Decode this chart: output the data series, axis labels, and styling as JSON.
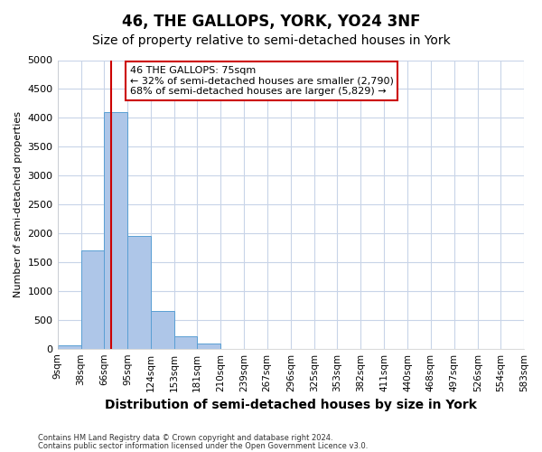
{
  "title": "46, THE GALLOPS, YORK, YO24 3NF",
  "subtitle": "Size of property relative to semi-detached houses in York",
  "xlabel": "Distribution of semi-detached houses by size in York",
  "ylabel": "Number of semi-detached properties",
  "footnote1": "Contains HM Land Registry data © Crown copyright and database right 2024.",
  "footnote2": "Contains public sector information licensed under the Open Government Licence v3.0.",
  "bar_edges": [
    9,
    38,
    66,
    95,
    124,
    153,
    181,
    210,
    239,
    267,
    296,
    325,
    353,
    382,
    411,
    440,
    468,
    497,
    526,
    554,
    583
  ],
  "bar_heights": [
    50,
    1700,
    4100,
    1950,
    650,
    220,
    85,
    0,
    0,
    0,
    0,
    0,
    0,
    0,
    0,
    0,
    0,
    0,
    0,
    0
  ],
  "bar_color": "#aec6e8",
  "bar_edgecolor": "#5a9fd4",
  "property_size": 75,
  "property_line_color": "#cc0000",
  "annotation_line1": "46 THE GALLOPS: 75sqm",
  "annotation_line2": "← 32% of semi-detached houses are smaller (2,790)",
  "annotation_line3": "68% of semi-detached houses are larger (5,829) →",
  "annotation_box_color": "#ffffff",
  "annotation_box_edgecolor": "#cc0000",
  "ylim": [
    0,
    5000
  ],
  "yticks": [
    0,
    500,
    1000,
    1500,
    2000,
    2500,
    3000,
    3500,
    4000,
    4500,
    5000
  ],
  "tick_labels": [
    "9sqm",
    "38sqm",
    "66sqm",
    "95sqm",
    "124sqm",
    "153sqm",
    "181sqm",
    "210sqm",
    "239sqm",
    "267sqm",
    "296sqm",
    "325sqm",
    "353sqm",
    "382sqm",
    "411sqm",
    "440sqm",
    "468sqm",
    "497sqm",
    "526sqm",
    "554sqm",
    "583sqm"
  ],
  "background_color": "#ffffff",
  "grid_color": "#c8d4e8",
  "title_fontsize": 12,
  "subtitle_fontsize": 10,
  "xlabel_fontsize": 9,
  "ylabel_fontsize": 8,
  "tick_fontsize": 7.5,
  "footnote_fontsize": 6,
  "annotation_fontsize": 8
}
